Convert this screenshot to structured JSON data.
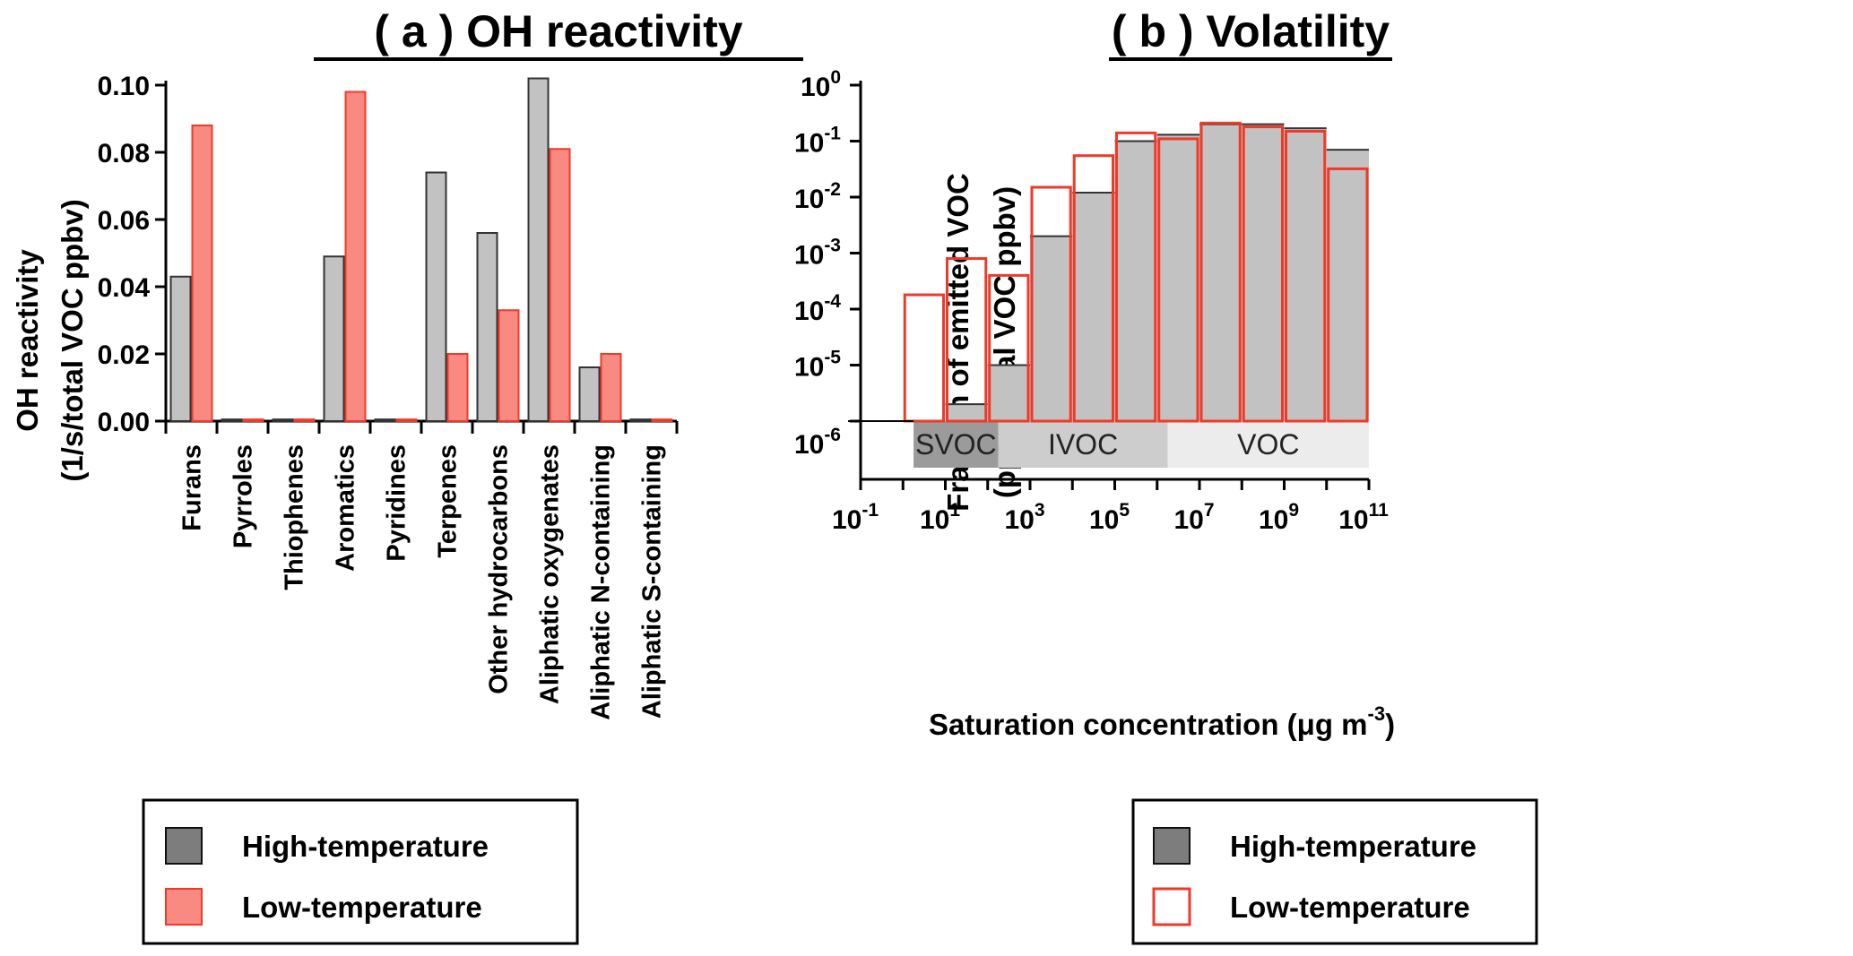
{
  "chart_data": [
    {
      "type": "bar",
      "title": "( a ) OH reactivity",
      "ylabel_line1": "OH reactivity",
      "ylabel_line2": "(1/s/total VOC ppbv)",
      "ylim": [
        0,
        0.1
      ],
      "yticks": [
        "0.00",
        "0.02",
        "0.04",
        "0.06",
        "0.08",
        "0.10"
      ],
      "categories": [
        "Furans",
        "Pyrroles",
        "Thiophenes",
        "Aromatics",
        "Pyridines",
        "Terpenes",
        "Other hydrocarbons",
        "Aliphatic oxygenates",
        "Aliphatic N-containing",
        "Aliphatic S-containing"
      ],
      "series": [
        {
          "name": "High-temperature",
          "color": "#c2c2c2",
          "stroke": "#333333",
          "values": [
            0.043,
            0.0005,
            0.0005,
            0.049,
            0.0005,
            0.074,
            0.056,
            0.102,
            0.016,
            0.0005
          ]
        },
        {
          "name": "Low-temperature",
          "color": "#f98a82",
          "stroke": "#ef3a2a",
          "values": [
            0.088,
            0.0005,
            0.0005,
            0.098,
            0.0005,
            0.02,
            0.033,
            0.081,
            0.02,
            0.0005
          ]
        }
      ],
      "legend": {
        "position": "bottom"
      }
    },
    {
      "type": "bar",
      "title": "( b ) Volatility",
      "scale": "log",
      "ylabel_line1": "Fraction of emitted VOC",
      "ylabel_line2": "(ppbv/total VOC ppbv)",
      "xlabel": "Saturation concentration (μg  m",
      "xlabel_sup": "-3",
      "xlabel_end": ")",
      "ylim_log10": [
        -6,
        0
      ],
      "xlim_log10": [
        -1,
        11
      ],
      "ytick_labels": [
        {
          "exp": -6,
          "base": "10",
          "sup": "-6"
        },
        {
          "exp": -5,
          "base": "10",
          "sup": "-5"
        },
        {
          "exp": -4,
          "base": "10",
          "sup": "-4"
        },
        {
          "exp": -3,
          "base": "10",
          "sup": "-3"
        },
        {
          "exp": -2,
          "base": "10",
          "sup": "-2"
        },
        {
          "exp": -1,
          "base": "10",
          "sup": "-1"
        },
        {
          "exp": 0,
          "base": "10",
          "sup": "0"
        }
      ],
      "xtick_labels": [
        {
          "exp": -1,
          "base": "10",
          "sup": "-1"
        },
        {
          "exp": 1,
          "base": "10",
          "sup": "1"
        },
        {
          "exp": 3,
          "base": "10",
          "sup": "3"
        },
        {
          "exp": 5,
          "base": "10",
          "sup": "5"
        },
        {
          "exp": 7,
          "base": "10",
          "sup": "7"
        },
        {
          "exp": 9,
          "base": "10",
          "sup": "9"
        },
        {
          "exp": 11,
          "base": "10",
          "sup": "11"
        }
      ],
      "regions": [
        {
          "label": "SVOC",
          "from_log10": 0.25,
          "to_log10": 2.25,
          "color": "#9b9b9b"
        },
        {
          "label": "IVOC",
          "from_log10": 2.25,
          "to_log10": 6.25,
          "color": "#cdcdcd"
        },
        {
          "label": "VOC",
          "from_log10": 6.25,
          "to_log10": 11.0,
          "color": "#ececec"
        }
      ],
      "bin_edges_log10": [
        0,
        1,
        2,
        3,
        4,
        5,
        6,
        7,
        8,
        9,
        10,
        11
      ],
      "series": [
        {
          "name": "High-temperature",
          "color": "#c2c2c2",
          "stroke": "#333333",
          "values": [
            null,
            2e-06,
            1e-05,
            0.002,
            0.012,
            0.1,
            0.13,
            0.2,
            0.2,
            0.17,
            0.07
          ]
        },
        {
          "name": "Low-temperature",
          "color": "none",
          "stroke": "#ef3a2a",
          "values": [
            0.00018,
            0.0008,
            0.0004,
            0.015,
            0.055,
            0.14,
            0.11,
            0.21,
            0.18,
            0.15,
            0.032
          ]
        }
      ],
      "legend": {
        "position": "bottom"
      }
    }
  ],
  "legend_a": {
    "high_label": "High-temperature",
    "low_label": "Low-temperature"
  },
  "legend_b": {
    "high_label": "High-temperature",
    "low_label": "Low-temperature"
  }
}
